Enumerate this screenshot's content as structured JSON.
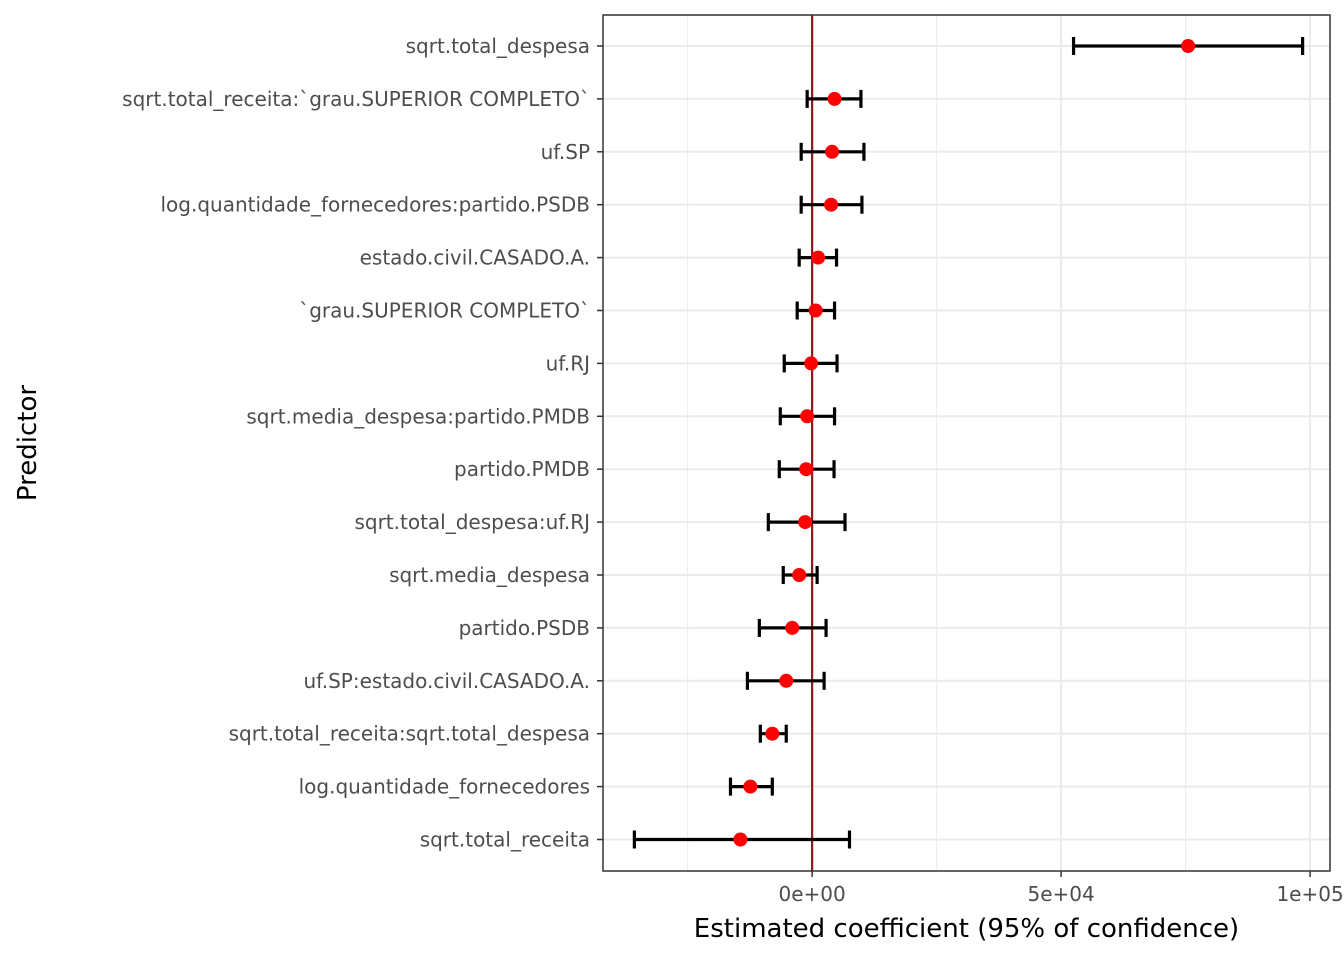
{
  "chart_data": {
    "type": "scatter",
    "xlabel": "Estimated coefficient (95% of confidence)",
    "ylabel": "Predictor",
    "xlim": [
      -42000,
      104000
    ],
    "x_ticks": [
      0,
      50000,
      100000
    ],
    "x_tick_labels": [
      "0e+00",
      "5e+04",
      "1e+05"
    ],
    "reference_line_x": 0,
    "grid": true,
    "colors": {
      "point": "#ff0000",
      "errorbar": "#000000",
      "reference_line": "#8b1a1a",
      "grid": "#ebebeb",
      "panel_border": "#333333"
    },
    "predictors": [
      {
        "label": "sqrt.total_despesa",
        "estimate": 75500,
        "lower": 52500,
        "upper": 98500
      },
      {
        "label": "sqrt.total_receita:`grau.SUPERIOR COMPLETO`",
        "estimate": 4500,
        "lower": -1000,
        "upper": 9800
      },
      {
        "label": "uf.SP",
        "estimate": 4000,
        "lower": -2200,
        "upper": 10400
      },
      {
        "label": "log.quantidade_fornecedores:partido.PSDB",
        "estimate": 3800,
        "lower": -2200,
        "upper": 10000
      },
      {
        "label": "estado.civil.CASADO.A.",
        "estimate": 1200,
        "lower": -2600,
        "upper": 4900
      },
      {
        "label": "`grau.SUPERIOR COMPLETO`",
        "estimate": 700,
        "lower": -3000,
        "upper": 4500
      },
      {
        "label": "uf.RJ",
        "estimate": -200,
        "lower": -5600,
        "upper": 5000
      },
      {
        "label": "sqrt.media_despesa:partido.PMDB",
        "estimate": -1000,
        "lower": -6400,
        "upper": 4500
      },
      {
        "label": "partido.PMDB",
        "estimate": -1200,
        "lower": -6600,
        "upper": 4400
      },
      {
        "label": "sqrt.total_despesa:uf.RJ",
        "estimate": -1400,
        "lower": -8800,
        "upper": 6600
      },
      {
        "label": "sqrt.media_despesa",
        "estimate": -2600,
        "lower": -5800,
        "upper": 1000
      },
      {
        "label": "partido.PSDB",
        "estimate": -4000,
        "lower": -10600,
        "upper": 2800
      },
      {
        "label": "uf.SP:estado.civil.CASADO.A.",
        "estimate": -5200,
        "lower": -13000,
        "upper": 2400
      },
      {
        "label": "sqrt.total_receita:sqrt.total_despesa",
        "estimate": -8000,
        "lower": -10400,
        "upper": -5200
      },
      {
        "label": "log.quantidade_fornecedores",
        "estimate": -12400,
        "lower": -16400,
        "upper": -8000
      },
      {
        "label": "sqrt.total_receita",
        "estimate": -14400,
        "lower": -35700,
        "upper": 7500
      }
    ]
  }
}
